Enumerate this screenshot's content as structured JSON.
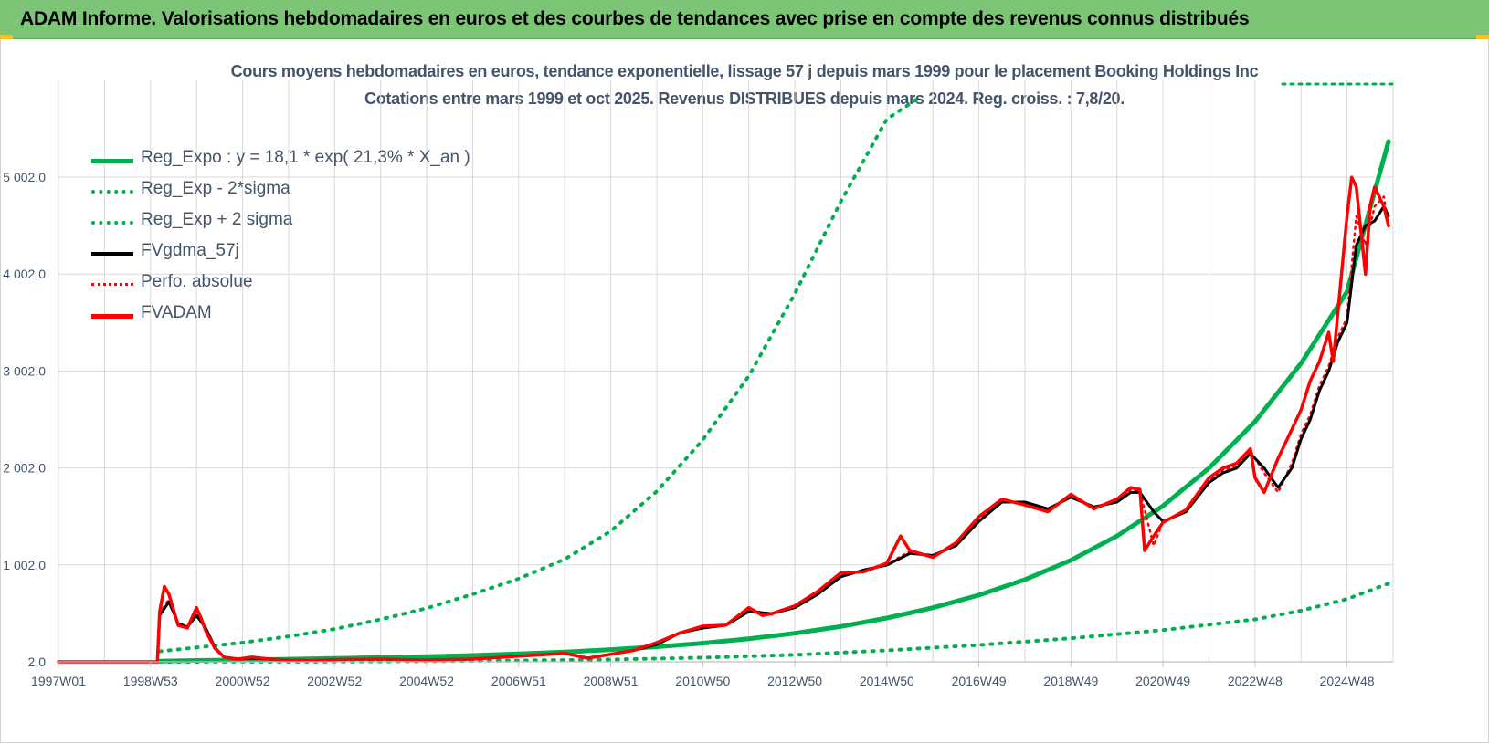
{
  "header": {
    "banner_title": "ADAM Informe. Valorisations hebdomadaires en euros et des courbes de tendances avec prise en compte des revenus connus distribués"
  },
  "chart_data": {
    "type": "line",
    "title": "Cours moyens hebdomadaires en euros, tendance exponentielle, lissage 57 j depuis mars 1999 pour le placement Booking Holdings Inc",
    "subtitle": "Cotations entre mars 1999 et oct 2025. Revenus DISTRIBUES depuis mars 2024. Reg. croiss. : 7,8/20.",
    "xlabel": "",
    "ylabel": "",
    "x_ticks": [
      "1997W01",
      "1998W53",
      "2000W52",
      "2002W52",
      "2004W52",
      "2006W51",
      "2008W51",
      "2010W50",
      "2012W50",
      "2014W50",
      "2016W49",
      "2018W49",
      "2020W49",
      "2022W48",
      "2024W48"
    ],
    "y_ticks": [
      "2,0",
      "1 002,0",
      "2 002,0",
      "3 002,0",
      "4 002,0",
      "5 002,0"
    ],
    "y_tick_values": [
      2,
      1002,
      2002,
      3002,
      4002,
      5002
    ],
    "xlim": [
      1997.0,
      2026.0
    ],
    "ylim": [
      2,
      5820
    ],
    "grid": true,
    "legend_position": "top-left",
    "colors": {
      "green": "#00b050",
      "black": "#000000",
      "red": "#ff0000",
      "text": "#44546a",
      "grid": "#d9d9d9"
    },
    "series": [
      {
        "name": "Reg_Expo : y = 18,1 * exp( 21,3% * X_an )",
        "style": "solid-green",
        "x": [
          1999.2,
          2000,
          2001,
          2002,
          2003,
          2004,
          2005,
          2006,
          2007,
          2008,
          2009,
          2010,
          2011,
          2012,
          2013,
          2014,
          2015,
          2016,
          2017,
          2018,
          2019,
          2020,
          2021,
          2022,
          2023,
          2024,
          2025,
          2025.9
        ],
        "values": [
          10,
          16,
          22,
          29,
          37,
          46,
          56,
          68,
          84,
          103,
          128,
          157,
          194,
          240,
          297,
          366,
          454,
          560,
          690,
          850,
          1050,
          1300,
          1610,
          2000,
          2480,
          3080,
          3820,
          5370
        ]
      },
      {
        "name": "Reg_Exp - 2*sigma",
        "style": "dotted-green",
        "x": [
          1999.2,
          2001,
          2003,
          2005,
          2007,
          2009,
          2011,
          2013,
          2015,
          2017,
          2019,
          2021,
          2023,
          2024,
          2025,
          2025.9
        ],
        "values": [
          2,
          3,
          4,
          8,
          15,
          26,
          45,
          74,
          120,
          175,
          245,
          330,
          440,
          530,
          650,
          810
        ]
      },
      {
        "name": "Reg_Exp + 2 sigma",
        "style": "dotted-green",
        "x": [
          1999.2,
          2000,
          2001,
          2002,
          2003,
          2004,
          2005,
          2006,
          2007,
          2008,
          2009,
          2010,
          2011,
          2012,
          2013,
          2014,
          2015,
          2015.7
        ],
        "values": [
          110,
          150,
          200,
          265,
          340,
          440,
          555,
          700,
          860,
          1060,
          1350,
          1760,
          2290,
          2950,
          3800,
          4750,
          5600,
          5820
        ]
      },
      {
        "name": "FVgdma_57j",
        "style": "solid-black",
        "x": [
          1997.0,
          1999.15,
          1999.2,
          1999.4,
          1999.6,
          1999.8,
          2000.0,
          2000.2,
          2000.4,
          2000.6,
          2000.9,
          2001.2,
          2001.6,
          2002.0,
          2002.5,
          2003.0,
          2004.0,
          2005.0,
          2006.0,
          2007.0,
          2008.0,
          2008.5,
          2009.0,
          2009.5,
          2010.0,
          2010.5,
          2011.0,
          2011.5,
          2012.0,
          2012.5,
          2013.0,
          2013.5,
          2014.0,
          2014.5,
          2015.0,
          2015.5,
          2016.0,
          2016.5,
          2017.0,
          2017.5,
          2018.0,
          2018.5,
          2019.0,
          2019.5,
          2020.0,
          2020.3,
          2020.5,
          2020.8,
          2021.0,
          2021.5,
          2022.0,
          2022.3,
          2022.6,
          2022.9,
          2023.2,
          2023.5,
          2023.8,
          2024.0,
          2024.2,
          2024.4,
          2024.6,
          2024.8,
          2025.0,
          2025.2,
          2025.4,
          2025.6,
          2025.8,
          2025.9
        ],
        "values": [
          2,
          2,
          480,
          620,
          400,
          360,
          480,
          350,
          150,
          50,
          30,
          40,
          30,
          20,
          15,
          25,
          30,
          20,
          30,
          60,
          90,
          40,
          80,
          120,
          180,
          300,
          350,
          380,
          520,
          500,
          560,
          700,
          880,
          950,
          1000,
          1120,
          1100,
          1200,
          1450,
          1650,
          1650,
          1580,
          1700,
          1600,
          1650,
          1750,
          1750,
          1550,
          1450,
          1550,
          1850,
          1950,
          2000,
          2150,
          2000,
          1800,
          2000,
          2300,
          2500,
          2800,
          3000,
          3300,
          3500,
          4300,
          4500,
          4550,
          4700,
          4600
        ]
      },
      {
        "name": "Perfo. absolue",
        "style": "dotted-red",
        "x": [
          1997.0,
          1999.15,
          1999.2,
          1999.4,
          1999.6,
          1999.8,
          2000.0,
          2000.2,
          2000.4,
          2000.6,
          2000.9,
          2001.2,
          2001.6,
          2002.0,
          2002.5,
          2003.0,
          2004.0,
          2005.0,
          2006.0,
          2007.0,
          2008.0,
          2008.5,
          2009.0,
          2009.5,
          2010.0,
          2010.5,
          2011.0,
          2011.5,
          2012.0,
          2012.5,
          2013.0,
          2013.5,
          2014.0,
          2014.5,
          2015.0,
          2015.5,
          2016.0,
          2016.5,
          2017.0,
          2017.5,
          2018.0,
          2018.5,
          2019.0,
          2019.5,
          2020.0,
          2020.3,
          2020.5,
          2020.8,
          2021.0,
          2021.5,
          2022.0,
          2022.3,
          2022.6,
          2022.9,
          2023.2,
          2023.5,
          2023.8,
          2024.0,
          2024.2,
          2024.4,
          2024.6,
          2024.8,
          2025.0,
          2025.2,
          2025.4,
          2025.6,
          2025.8,
          2025.9
        ],
        "values": [
          2,
          2,
          500,
          650,
          380,
          360,
          520,
          330,
          150,
          50,
          30,
          45,
          30,
          20,
          15,
          25,
          30,
          20,
          30,
          60,
          90,
          40,
          80,
          120,
          190,
          300,
          360,
          380,
          540,
          490,
          570,
          720,
          900,
          940,
          1010,
          1140,
          1090,
          1220,
          1480,
          1660,
          1640,
          1560,
          1720,
          1590,
          1660,
          1780,
          1760,
          1200,
          1450,
          1560,
          1880,
          1980,
          2020,
          2180,
          1950,
          1750,
          2050,
          2350,
          2550,
          2850,
          3050,
          3350,
          3550,
          4600,
          4300,
          4700,
          4800,
          4500
        ]
      },
      {
        "name": "FVADAM",
        "style": "solid-red",
        "x": [
          1997.0,
          1999.15,
          1999.2,
          1999.3,
          1999.4,
          1999.6,
          1999.8,
          2000.0,
          2000.1,
          2000.2,
          2000.4,
          2000.6,
          2000.9,
          2001.2,
          2001.6,
          2002.0,
          2002.5,
          2003.0,
          2004.0,
          2005.0,
          2006.0,
          2007.0,
          2008.0,
          2008.5,
          2009.0,
          2009.5,
          2010.0,
          2010.5,
          2011.0,
          2011.5,
          2012.0,
          2012.3,
          2012.5,
          2013.0,
          2013.5,
          2014.0,
          2014.5,
          2015.0,
          2015.3,
          2015.5,
          2016.0,
          2016.5,
          2017.0,
          2017.5,
          2018.0,
          2018.5,
          2019.0,
          2019.5,
          2020.0,
          2020.3,
          2020.5,
          2020.6,
          2020.8,
          2021.0,
          2021.5,
          2022.0,
          2022.3,
          2022.6,
          2022.9,
          2023.0,
          2023.2,
          2023.5,
          2023.8,
          2024.0,
          2024.2,
          2024.4,
          2024.6,
          2024.7,
          2024.8,
          2025.0,
          2025.1,
          2025.2,
          2025.4,
          2025.5,
          2025.6,
          2025.8,
          2025.9
        ],
        "values": [
          2,
          2,
          520,
          780,
          700,
          380,
          350,
          560,
          450,
          320,
          140,
          50,
          30,
          50,
          30,
          20,
          15,
          25,
          30,
          20,
          30,
          60,
          90,
          40,
          80,
          120,
          200,
          300,
          370,
          380,
          560,
          480,
          500,
          580,
          730,
          920,
          930,
          1020,
          1300,
          1150,
          1080,
          1230,
          1500,
          1680,
          1620,
          1550,
          1730,
          1580,
          1680,
          1800,
          1780,
          1150,
          1300,
          1440,
          1570,
          1900,
          2000,
          2050,
          2200,
          1900,
          1750,
          2100,
          2400,
          2600,
          2900,
          3100,
          3400,
          3100,
          3600,
          4600,
          5000,
          4900,
          4000,
          4700,
          4900,
          4700,
          4500
        ]
      }
    ]
  }
}
